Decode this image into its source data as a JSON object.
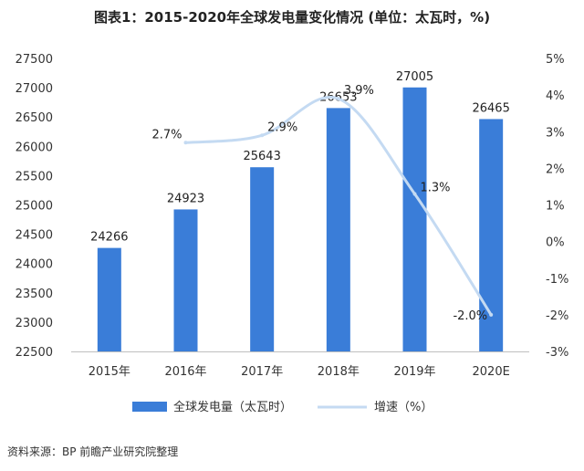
{
  "title": "图表1：2015-2020年全球发电量变化情况 (单位：太瓦时，%)",
  "source": "资料来源：BP 前瞻产业研究院整理",
  "chart_data": {
    "type": "bar",
    "categories": [
      "2015年",
      "2016年",
      "2017年",
      "2018年",
      "2019年",
      "2020E"
    ],
    "series": [
      {
        "name": "全球发电量（太瓦时）",
        "type": "bar",
        "axis": "left",
        "values": [
          24266,
          24923,
          25643,
          26653,
          27005,
          26465
        ],
        "labels": [
          "24266",
          "24923",
          "25643",
          "26653",
          "27005",
          "26465"
        ],
        "color": "#3a7dd8"
      },
      {
        "name": "增速（%）",
        "type": "line",
        "axis": "right",
        "values": [
          null,
          2.7,
          2.9,
          3.9,
          1.3,
          -2.0
        ],
        "labels": [
          "",
          "2.7%",
          "2.9%",
          "3.9%",
          "1.3%",
          "-2.0%"
        ],
        "color": "#c4daf2"
      }
    ],
    "y_left": {
      "range": [
        22500,
        27500
      ],
      "ticks": [
        22500,
        23000,
        23500,
        24000,
        24500,
        25000,
        25500,
        26000,
        26500,
        27000,
        27500
      ],
      "tick_labels": [
        "22500",
        "23000",
        "23500",
        "24000",
        "24500",
        "25000",
        "25500",
        "26000",
        "26500",
        "27000",
        "27500"
      ]
    },
    "y_right": {
      "range": [
        -3,
        5
      ],
      "ticks": [
        -3,
        -2,
        -1,
        0,
        1,
        2,
        3,
        4,
        5
      ],
      "tick_labels": [
        "-3%",
        "-2%",
        "-1%",
        "0%",
        "1%",
        "2%",
        "3%",
        "4%",
        "5%"
      ]
    },
    "grid": false,
    "legend": "bottom"
  }
}
